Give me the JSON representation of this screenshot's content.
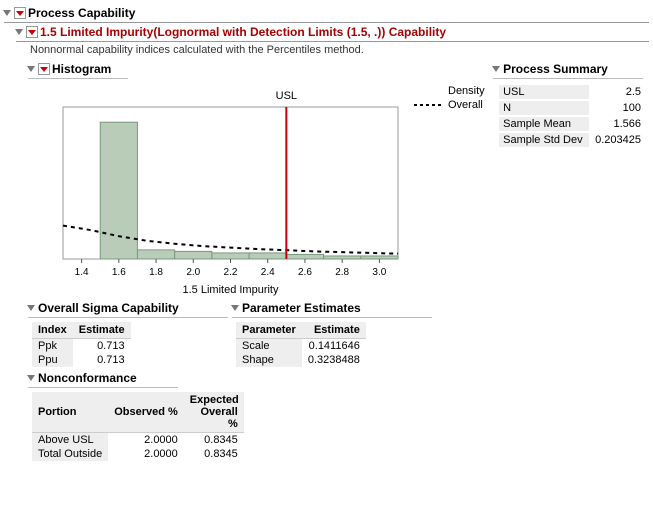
{
  "main": {
    "title": "Process Capability",
    "section_title": "1.5 Limited Impurity(Lognormal with Detection Limits (1.5, .)) Capability",
    "note": "Nonnormal capability indices calculated with the Percentiles method."
  },
  "histogram": {
    "title": "Histogram",
    "x_label": "1.5 Limited Impurity",
    "usl_label": "USL",
    "usl_value": 2.5,
    "x_ticks": [
      1.4,
      1.6,
      1.8,
      2.0,
      2.2,
      2.4,
      2.6,
      2.8,
      3.0
    ],
    "x_min": 1.3,
    "x_max": 3.1,
    "y_max": 1.0,
    "bin_width": 0.2,
    "bars": [
      {
        "x0": 1.5,
        "h": 0.9
      },
      {
        "x0": 1.7,
        "h": 0.06
      },
      {
        "x0": 1.9,
        "h": 0.05
      },
      {
        "x0": 2.1,
        "h": 0.04
      },
      {
        "x0": 2.3,
        "h": 0.04
      },
      {
        "x0": 2.5,
        "h": 0.03
      },
      {
        "x0": 2.7,
        "h": 0.02
      },
      {
        "x0": 2.9,
        "h": 0.02
      }
    ],
    "bar_color": "#b8ccb8",
    "bar_stroke": "#7a9a7a",
    "density_points": [
      [
        1.3,
        0.22
      ],
      [
        1.45,
        0.19
      ],
      [
        1.6,
        0.15
      ],
      [
        1.75,
        0.12
      ],
      [
        1.9,
        0.1
      ],
      [
        2.05,
        0.085
      ],
      [
        2.2,
        0.075
      ],
      [
        2.35,
        0.065
      ],
      [
        2.5,
        0.058
      ],
      [
        2.65,
        0.05
      ],
      [
        2.8,
        0.045
      ],
      [
        2.95,
        0.04
      ],
      [
        3.1,
        0.035
      ]
    ],
    "density_color": "#000",
    "usl_color": "#c00",
    "legend": {
      "density": "Density",
      "overall": "Overall"
    }
  },
  "process_summary": {
    "title": "Process Summary",
    "rows": [
      {
        "label": "USL",
        "value": "2.5"
      },
      {
        "label": "N",
        "value": "100"
      },
      {
        "label": "Sample Mean",
        "value": "1.566"
      },
      {
        "label": "Sample Std Dev",
        "value": "0.203425"
      }
    ]
  },
  "sigma_cap": {
    "title": "Overall Sigma Capability",
    "cols": [
      "Index",
      "Estimate"
    ],
    "rows": [
      {
        "label": "Ppk",
        "value": "0.713"
      },
      {
        "label": "Ppu",
        "value": "0.713"
      }
    ]
  },
  "param_est": {
    "title": "Parameter Estimates",
    "cols": [
      "Parameter",
      "Estimate"
    ],
    "rows": [
      {
        "label": "Scale",
        "value": "0.1411646"
      },
      {
        "label": "Shape",
        "value": "0.3238488"
      }
    ]
  },
  "nonconf": {
    "title": "Nonconformance",
    "cols": [
      "Portion",
      "Observed %",
      "Expected Overall %"
    ],
    "rows": [
      {
        "label": "Above USL",
        "obs": "2.0000",
        "exp": "0.8345"
      },
      {
        "label": "Total Outside",
        "obs": "2.0000",
        "exp": "0.8345"
      }
    ]
  }
}
